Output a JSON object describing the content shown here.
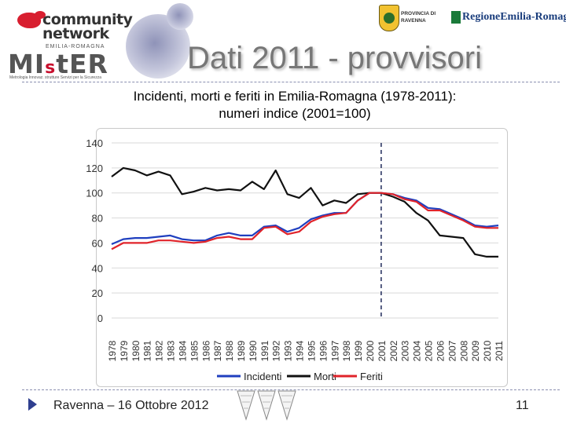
{
  "header": {
    "logo_main": "community network",
    "logo_sub": "EMILIA-ROMAGNA",
    "mister_prefix": "MI",
    "mister_mid": "s",
    "mister_suffix": "t",
    "mister_end": "ER",
    "mister_tagline": "Metrologia   Innovaz.   strutture   Servizi per la Sicurezza",
    "provincia_line1": "PROVINCIA DI",
    "provincia_line2": "RAVENNA",
    "region": "RegioneEmilia-Romagna",
    "title": "Dati 2011 - provvisori"
  },
  "subtitle_line1": "Incidenti, morti e feriti in Emilia-Romagna (1978-2011):",
  "subtitle_line2": "numeri indice (2001=100)",
  "footer": {
    "text": "Ravenna – 16 Ottobre 2012",
    "page": "11"
  },
  "colors": {
    "incidenti": "#1f3fbf",
    "morti": "#111111",
    "feriti": "#e0232a"
  },
  "chart_data": {
    "type": "line",
    "title": "",
    "xlabel": "",
    "ylabel": "",
    "ylim": [
      0,
      140
    ],
    "yticks": [
      "0",
      "20",
      "40",
      "60",
      "80",
      "100",
      "120",
      "140"
    ],
    "categories": [
      "1978",
      "1979",
      "1980",
      "1981",
      "1982",
      "1983",
      "1984",
      "1985",
      "1986",
      "1987",
      "1988",
      "1989",
      "1990",
      "1991",
      "1992",
      "1993",
      "1994",
      "1995",
      "1996",
      "1997",
      "1998",
      "1999",
      "2000",
      "2001",
      "2002",
      "2003",
      "2004",
      "2005",
      "2006",
      "2007",
      "2008",
      "2009",
      "2010",
      "2011"
    ],
    "reference_year": "2001",
    "series": [
      {
        "name": "Incidenti",
        "color": "#1f3fbf",
        "values": [
          59,
          63,
          64,
          64,
          65,
          66,
          63,
          62,
          62,
          66,
          68,
          66,
          66,
          73,
          74,
          69,
          72,
          79,
          82,
          84,
          84,
          94,
          100,
          100,
          99,
          96,
          94,
          88,
          87,
          83,
          79,
          74,
          73,
          74
        ]
      },
      {
        "name": "Morti",
        "color": "#111111",
        "values": [
          113,
          120,
          118,
          114,
          117,
          114,
          99,
          101,
          104,
          102,
          103,
          102,
          109,
          103,
          118,
          99,
          96,
          104,
          90,
          94,
          92,
          99,
          100,
          100,
          97,
          93,
          84,
          78,
          66,
          65,
          64,
          51,
          49,
          49
        ]
      },
      {
        "name": "Feriti",
        "color": "#e0232a",
        "values": [
          55,
          60,
          60,
          60,
          62,
          62,
          61,
          60,
          61,
          64,
          65,
          63,
          63,
          72,
          73,
          67,
          69,
          77,
          81,
          83,
          84,
          94,
          100,
          100,
          99,
          95,
          93,
          86,
          86,
          82,
          78,
          73,
          72,
          72
        ]
      }
    ],
    "legend": [
      "Incidenti",
      "Morti",
      "Feriti"
    ],
    "legend_position": "bottom",
    "grid": true
  }
}
